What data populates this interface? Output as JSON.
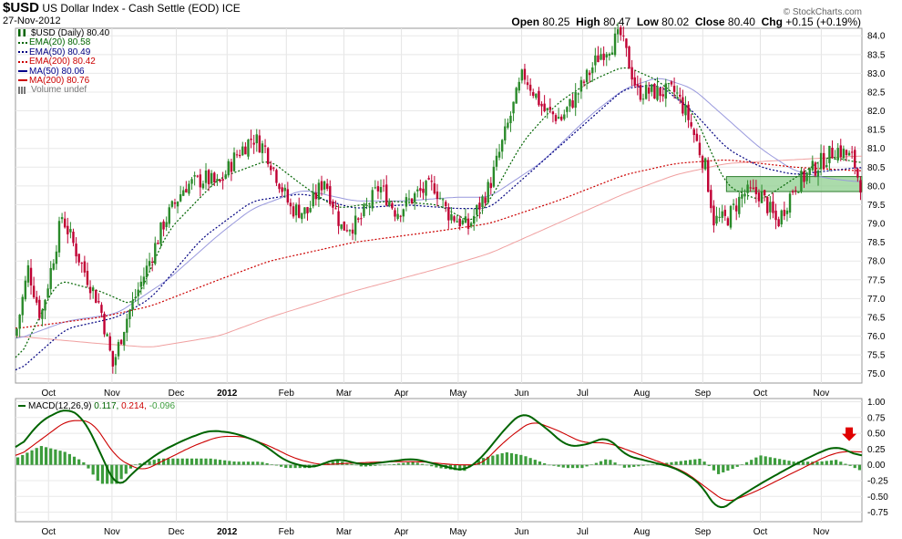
{
  "header": {
    "symbol": "$USD",
    "name": "US Dollar Index - Cash Settle (EOD)",
    "exchange": "ICE",
    "date": "27-Nov-2012",
    "open_label": "Open",
    "open": "80.25",
    "high_label": "High",
    "high": "80.47",
    "low_label": "Low",
    "low": "80.02",
    "close_label": "Close",
    "close": "80.40",
    "chg_label": "Chg",
    "chg": "+0.15 (+0.19%)",
    "watermark": "© StockCharts.com"
  },
  "legend": [
    {
      "text": "$USD (Daily) 80.40",
      "color": "#006400",
      "style": "candle"
    },
    {
      "text": "EMA(20) 80.58",
      "color": "#006400",
      "style": "dotted"
    },
    {
      "text": "EMA(50) 80.49",
      "color": "#000080",
      "style": "dotted"
    },
    {
      "text": "EMA(200) 80.42",
      "color": "#cc0000",
      "style": "dotted"
    },
    {
      "text": "MA(50) 80.06",
      "color": "#00008b",
      "style": "solid"
    },
    {
      "text": "MA(200) 80.76",
      "color": "#cc0000",
      "style": "solid"
    },
    {
      "text": "Volume undef",
      "color": "#777777",
      "style": "bars"
    }
  ],
  "macd_label": {
    "name": "MACD(12,26,9)",
    "v1": "0.117",
    "v2": "0.214",
    "v3": "-0.096"
  },
  "x_labels": [
    "Oct",
    "Nov",
    "Dec",
    "2012",
    "Feb",
    "Mar",
    "Apr",
    "May",
    "Jun",
    "Jul",
    "Aug",
    "Sep",
    "Oct",
    "Nov"
  ],
  "colors": {
    "up": "#2a8a2a",
    "down": "#c00033",
    "ema20": "#006400",
    "ema50": "#000080",
    "ema200": "#cc0000",
    "ma50": "#9999dd",
    "ma200": "#f0a0a0",
    "macd": "#006400",
    "signal": "#cc0000",
    "hist": "#3c9c3c",
    "zone": "#8fcf8f"
  },
  "chart_data": [
    {
      "type": "candlestick",
      "y_ticks": [
        75.0,
        75.5,
        76.0,
        76.5,
        77.0,
        77.5,
        78.0,
        78.5,
        79.0,
        79.5,
        80.0,
        80.5,
        81.0,
        81.5,
        82.0,
        82.5,
        83.0,
        83.5,
        84.0
      ],
      "ylim": [
        74.75,
        84.2
      ],
      "x_range": [
        0,
        100
      ],
      "price_path": [
        [
          0,
          76.0
        ],
        [
          1.5,
          77.8
        ],
        [
          3,
          76.5
        ],
        [
          5.5,
          79.2
        ],
        [
          8,
          77.8
        ],
        [
          10,
          76.8
        ],
        [
          11.5,
          75.2
        ],
        [
          13,
          76.4
        ],
        [
          15.5,
          77.8
        ],
        [
          17.5,
          79.0
        ],
        [
          20,
          80.0
        ],
        [
          22.5,
          80.2
        ],
        [
          24,
          80.0
        ],
        [
          26,
          80.8
        ],
        [
          28,
          81.3
        ],
        [
          29.5,
          81.0
        ],
        [
          31,
          80.2
        ],
        [
          32.5,
          79.4
        ],
        [
          34.5,
          79.3
        ],
        [
          36.5,
          80.2
        ],
        [
          38.5,
          78.9
        ],
        [
          40.5,
          79.0
        ],
        [
          43,
          80.0
        ],
        [
          45,
          79.3
        ],
        [
          47.5,
          79.8
        ],
        [
          49.5,
          80.0
        ],
        [
          51,
          79.3
        ],
        [
          53.5,
          78.9
        ],
        [
          56,
          80.0
        ],
        [
          58,
          81.5
        ],
        [
          60,
          83.0
        ],
        [
          62.5,
          82.0
        ],
        [
          64.5,
          81.8
        ],
        [
          66.5,
          82.5
        ],
        [
          69,
          83.5
        ],
        [
          71.5,
          84.0
        ],
        [
          73.5,
          82.5
        ],
        [
          76,
          82.5
        ],
        [
          78,
          82.5
        ],
        [
          79.5,
          81.8
        ],
        [
          81.5,
          80.5
        ],
        [
          82.5,
          79.1
        ],
        [
          84,
          79.1
        ],
        [
          86,
          79.8
        ],
        [
          88,
          79.8
        ],
        [
          90,
          79.0
        ],
        [
          92,
          80.0
        ],
        [
          94.5,
          80.5
        ],
        [
          97,
          81.0
        ],
        [
          99,
          80.7
        ],
        [
          99.8,
          80.0
        ],
        [
          100,
          80.4
        ]
      ],
      "ema20": [
        [
          0,
          75.2
        ],
        [
          5,
          77.5
        ],
        [
          10,
          77.2
        ],
        [
          14,
          76.8
        ],
        [
          18,
          78.8
        ],
        [
          24,
          80.2
        ],
        [
          30,
          80.7
        ],
        [
          34,
          80.0
        ],
        [
          38,
          79.4
        ],
        [
          44,
          79.6
        ],
        [
          50,
          79.5
        ],
        [
          54,
          79.0
        ],
        [
          56,
          79.6
        ],
        [
          60,
          81.2
        ],
        [
          64,
          82.2
        ],
        [
          68,
          82.8
        ],
        [
          72,
          83.2
        ],
        [
          76,
          82.8
        ],
        [
          80,
          82.0
        ],
        [
          84,
          80.0
        ],
        [
          88,
          79.6
        ],
        [
          92,
          80.2
        ],
        [
          96,
          80.8
        ],
        [
          100,
          80.6
        ]
      ],
      "ema50": [
        [
          0,
          75.0
        ],
        [
          6,
          76.2
        ],
        [
          12,
          76.5
        ],
        [
          16,
          77.0
        ],
        [
          22,
          78.6
        ],
        [
          28,
          79.6
        ],
        [
          34,
          79.8
        ],
        [
          40,
          79.4
        ],
        [
          46,
          79.5
        ],
        [
          52,
          79.4
        ],
        [
          56,
          79.4
        ],
        [
          62,
          80.6
        ],
        [
          68,
          81.8
        ],
        [
          72,
          82.6
        ],
        [
          76,
          82.7
        ],
        [
          80,
          82.0
        ],
        [
          84,
          81.0
        ],
        [
          88,
          80.5
        ],
        [
          92,
          80.3
        ],
        [
          96,
          80.4
        ],
        [
          100,
          80.5
        ]
      ],
      "ema200": [
        [
          0,
          76.2
        ],
        [
          10,
          76.5
        ],
        [
          16,
          76.8
        ],
        [
          24,
          77.5
        ],
        [
          30,
          78.0
        ],
        [
          40,
          78.5
        ],
        [
          50,
          78.8
        ],
        [
          56,
          79.0
        ],
        [
          64,
          79.6
        ],
        [
          72,
          80.3
        ],
        [
          78,
          80.6
        ],
        [
          84,
          80.7
        ],
        [
          92,
          80.5
        ],
        [
          100,
          80.4
        ]
      ],
      "ma50": [
        [
          0,
          75.9
        ],
        [
          6,
          76.4
        ],
        [
          12,
          76.6
        ],
        [
          18,
          77.5
        ],
        [
          24,
          78.7
        ],
        [
          28,
          79.4
        ],
        [
          34,
          79.9
        ],
        [
          40,
          79.6
        ],
        [
          46,
          79.6
        ],
        [
          52,
          79.7
        ],
        [
          56,
          79.7
        ],
        [
          62,
          80.6
        ],
        [
          68,
          81.9
        ],
        [
          72,
          82.6
        ],
        [
          76,
          82.9
        ],
        [
          80,
          82.6
        ],
        [
          84,
          81.8
        ],
        [
          88,
          81.0
        ],
        [
          92,
          80.4
        ],
        [
          96,
          80.2
        ],
        [
          100,
          80.1
        ]
      ],
      "ma200": [
        [
          0,
          76.0
        ],
        [
          10,
          75.8
        ],
        [
          16,
          75.7
        ],
        [
          24,
          76.0
        ],
        [
          30,
          76.5
        ],
        [
          40,
          77.2
        ],
        [
          50,
          77.8
        ],
        [
          56,
          78.2
        ],
        [
          64,
          79.0
        ],
        [
          72,
          79.8
        ],
        [
          78,
          80.3
        ],
        [
          84,
          80.6
        ],
        [
          92,
          80.7
        ],
        [
          100,
          80.8
        ]
      ],
      "support_zone": {
        "x": [
          84,
          100
        ],
        "y": [
          79.85,
          80.25
        ]
      }
    },
    {
      "type": "macd",
      "y_ticks": [
        -0.75,
        -0.5,
        -0.25,
        0.0,
        0.25,
        0.5,
        0.75,
        1.0
      ],
      "ylim": [
        -0.9,
        1.05
      ],
      "macd": [
        [
          0,
          0.2
        ],
        [
          3,
          0.7
        ],
        [
          6,
          0.9
        ],
        [
          8,
          0.75
        ],
        [
          10,
          0.2
        ],
        [
          12,
          -0.4
        ],
        [
          14,
          -0.1
        ],
        [
          17,
          0.2
        ],
        [
          20,
          0.4
        ],
        [
          23,
          0.55
        ],
        [
          26,
          0.5
        ],
        [
          29,
          0.35
        ],
        [
          32,
          0.05
        ],
        [
          35,
          -0.05
        ],
        [
          38,
          0.1
        ],
        [
          41,
          0.0
        ],
        [
          44,
          0.05
        ],
        [
          47,
          0.1
        ],
        [
          50,
          0.0
        ],
        [
          53,
          -0.1
        ],
        [
          55,
          0.1
        ],
        [
          58,
          0.6
        ],
        [
          60,
          0.85
        ],
        [
          63,
          0.55
        ],
        [
          65,
          0.3
        ],
        [
          67,
          0.3
        ],
        [
          70,
          0.45
        ],
        [
          72,
          0.15
        ],
        [
          75,
          0.05
        ],
        [
          78,
          -0.05
        ],
        [
          81,
          -0.3
        ],
        [
          83,
          -0.75
        ],
        [
          85,
          -0.55
        ],
        [
          88,
          -0.3
        ],
        [
          90,
          -0.15
        ],
        [
          92,
          0.0
        ],
        [
          95,
          0.2
        ],
        [
          97,
          0.3
        ],
        [
          100,
          0.12
        ]
      ],
      "signal": [
        [
          0,
          0.1
        ],
        [
          3,
          0.4
        ],
        [
          6,
          0.7
        ],
        [
          9,
          0.7
        ],
        [
          12,
          0.1
        ],
        [
          15,
          -0.1
        ],
        [
          18,
          0.1
        ],
        [
          21,
          0.3
        ],
        [
          24,
          0.45
        ],
        [
          27,
          0.45
        ],
        [
          30,
          0.3
        ],
        [
          33,
          0.1
        ],
        [
          36,
          0.0
        ],
        [
          40,
          0.03
        ],
        [
          44,
          0.05
        ],
        [
          48,
          0.05
        ],
        [
          52,
          0.0
        ],
        [
          55,
          0.0
        ],
        [
          58,
          0.4
        ],
        [
          61,
          0.7
        ],
        [
          64,
          0.55
        ],
        [
          67,
          0.35
        ],
        [
          70,
          0.35
        ],
        [
          73,
          0.2
        ],
        [
          76,
          0.05
        ],
        [
          79,
          -0.1
        ],
        [
          82,
          -0.4
        ],
        [
          84,
          -0.6
        ],
        [
          87,
          -0.45
        ],
        [
          90,
          -0.25
        ],
        [
          93,
          -0.05
        ],
        [
          96,
          0.15
        ],
        [
          98,
          0.22
        ],
        [
          100,
          0.2
        ]
      ],
      "histogram": [
        [
          0,
          0.1
        ],
        [
          3,
          0.3
        ],
        [
          6,
          0.2
        ],
        [
          8,
          0.05
        ],
        [
          10,
          -0.3
        ],
        [
          12,
          -0.3
        ],
        [
          14,
          0.0
        ],
        [
          17,
          0.1
        ],
        [
          20,
          0.1
        ],
        [
          23,
          0.1
        ],
        [
          26,
          0.05
        ],
        [
          29,
          0.05
        ],
        [
          32,
          -0.05
        ],
        [
          35,
          -0.05
        ],
        [
          38,
          0.07
        ],
        [
          41,
          -0.03
        ],
        [
          44,
          0.0
        ],
        [
          47,
          0.05
        ],
        [
          50,
          -0.05
        ],
        [
          53,
          -0.1
        ],
        [
          55,
          0.1
        ],
        [
          58,
          0.2
        ],
        [
          60,
          0.15
        ],
        [
          63,
          0.0
        ],
        [
          65,
          -0.05
        ],
        [
          67,
          -0.05
        ],
        [
          70,
          0.1
        ],
        [
          72,
          -0.05
        ],
        [
          75,
          0.0
        ],
        [
          78,
          0.05
        ],
        [
          81,
          0.1
        ],
        [
          83,
          -0.15
        ],
        [
          85,
          -0.05
        ],
        [
          88,
          0.15
        ],
        [
          90,
          0.1
        ],
        [
          92,
          0.05
        ],
        [
          95,
          0.05
        ],
        [
          97,
          0.08
        ],
        [
          100,
          -0.1
        ]
      ]
    }
  ]
}
